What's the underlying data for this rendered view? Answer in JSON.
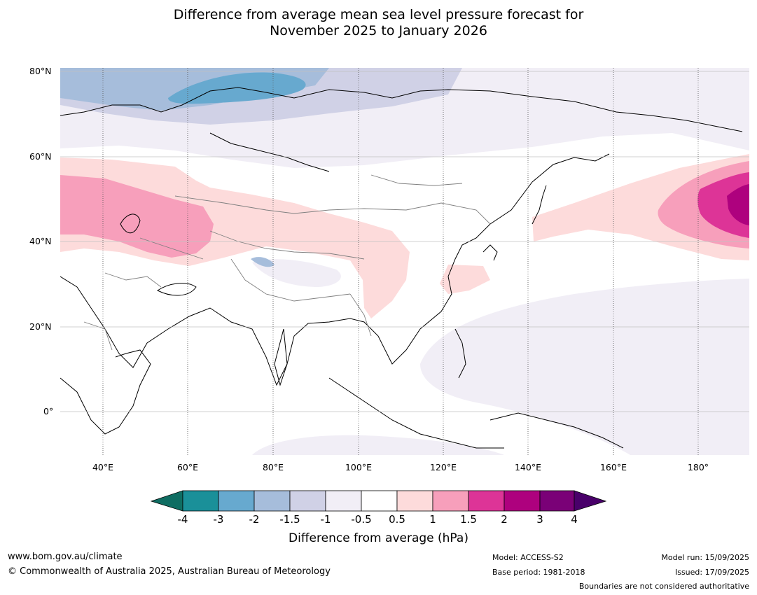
{
  "title": {
    "line1": "Difference from average mean sea level pressure forecast for",
    "line2": "November 2025 to January 2026"
  },
  "lat_ticks": [
    "80°N",
    "60°N",
    "40°N",
    "20°N",
    "0°"
  ],
  "lon_ticks": [
    "40°E",
    "60°E",
    "80°E",
    "100°E",
    "120°E",
    "140°E",
    "160°E",
    "180°"
  ],
  "colorbar": {
    "ticks": [
      "-4",
      "-3",
      "-2",
      "-1.5",
      "-1",
      "-0.5",
      "0.5",
      "1",
      "1.5",
      "2",
      "3",
      "4"
    ],
    "colors": [
      "#0f6d62",
      "#1a9099",
      "#67a9cf",
      "#a6bddb",
      "#d0d1e6",
      "#f1eef6",
      "#ffffff",
      "#fddbdb",
      "#f79fbb",
      "#dd3497",
      "#ae017e",
      "#7a0177",
      "#49006a"
    ],
    "label": "Difference from average (hPa)"
  },
  "footer": {
    "url": "www.bom.gov.au/climate",
    "copyright": "© Commonwealth of Australia 2025, Australian Bureau of Meteorology",
    "model": "Model: ACCESS-S2",
    "base_period": "Base period: 1981-2018",
    "model_run": "Model run: 15/09/2025",
    "issued": "Issued: 17/09/2025",
    "disclaimer": "Boundaries are not considered authoritative"
  }
}
